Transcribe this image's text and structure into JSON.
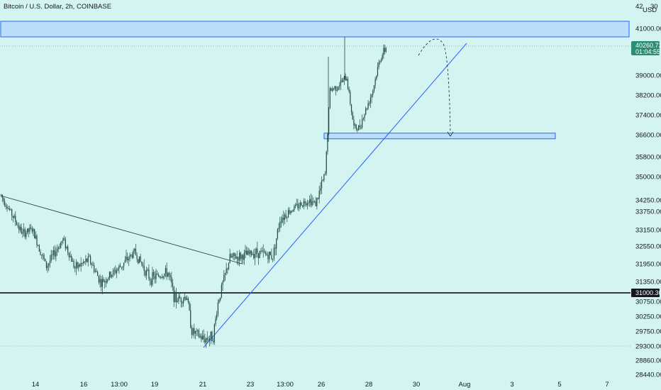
{
  "header": {
    "title": "Bitcoin / U.S. Dollar, 2h, COINBASE"
  },
  "colors": {
    "background": "#d4f4f1",
    "candle": "#1f4a42",
    "trendline": "#2962ff",
    "zone_fill": "#bbdefb",
    "price_tag": "#2c8c72",
    "level_tag": "#131722"
  },
  "chart_data": {
    "type": "candlestick",
    "symbol": "BTCUSD",
    "currency": "USD",
    "timeframe": "2h",
    "ylim": [
      28200,
      42000
    ],
    "x_ticks": [
      "14",
      "16",
      "13:00",
      "19",
      "21",
      "23",
      "13:00",
      "26",
      "28",
      "30",
      "Aug",
      "3",
      "5",
      "7"
    ],
    "y_ticks": [
      "41000.00",
      "39000.00",
      "38200.00",
      "37400.00",
      "36600.00",
      "35800.00",
      "35000.00",
      "34250.00",
      "33750.00",
      "33150.00",
      "32550.00",
      "31950.00",
      "31350.00",
      "30750.00",
      "30250.00",
      "29750.00",
      "29300.00",
      "28860.00",
      "28440.00"
    ],
    "top_axis_label": "42",
    "top_axis_label_2": "30",
    "currency_label": "USD",
    "current_price": {
      "value": "40260.72",
      "countdown": "01:04:55"
    },
    "levels": [
      {
        "name": "support",
        "label": "31000.30",
        "price": 31000.3
      },
      {
        "name": "low",
        "price": 29300
      }
    ],
    "zones": [
      {
        "name": "resistance-zone",
        "from": 40800,
        "to": 41350
      },
      {
        "name": "target-zone",
        "from": 36450,
        "to": 36650
      }
    ],
    "trendlines": [
      {
        "name": "descending-trendline",
        "from": {
          "bar": 0,
          "price": 34650
        },
        "to": {
          "bar": 202,
          "price": 32150
        }
      },
      {
        "name": "ascending-trendline",
        "from": {
          "bar": 171,
          "price": 29280
        },
        "to": {
          "bar": 392,
          "price": 40400
        }
      }
    ],
    "projection": {
      "name": "projected-path",
      "end_price": 36600
    },
    "ohlc_segments": [
      {
        "x": 0,
        "price": 34400
      },
      {
        "x": 7,
        "price": 33800
      },
      {
        "x": 18,
        "price": 33000
      },
      {
        "x": 26,
        "price": 33150
      },
      {
        "x": 38,
        "price": 31850
      },
      {
        "x": 52,
        "price": 32800
      },
      {
        "x": 62,
        "price": 31800
      },
      {
        "x": 74,
        "price": 32100
      },
      {
        "x": 84,
        "price": 31300
      },
      {
        "x": 100,
        "price": 31850
      },
      {
        "x": 112,
        "price": 32350
      },
      {
        "x": 125,
        "price": 31450
      },
      {
        "x": 140,
        "price": 31650
      },
      {
        "x": 146,
        "price": 30800
      },
      {
        "x": 156,
        "price": 30900
      },
      {
        "x": 160,
        "price": 29750
      },
      {
        "x": 170,
        "price": 29500
      },
      {
        "x": 178,
        "price": 29600
      },
      {
        "x": 182,
        "price": 30700
      },
      {
        "x": 192,
        "price": 32150
      },
      {
        "x": 202,
        "price": 32200
      },
      {
        "x": 214,
        "price": 32350
      },
      {
        "x": 228,
        "price": 32200
      },
      {
        "x": 234,
        "price": 33500
      },
      {
        "x": 246,
        "price": 33900
      },
      {
        "x": 258,
        "price": 34250
      },
      {
        "x": 264,
        "price": 34100
      },
      {
        "x": 268,
        "price": 34600
      },
      {
        "x": 272,
        "price": 35100
      },
      {
        "x": 276,
        "price": 38400
      },
      {
        "x": 282,
        "price": 38550
      },
      {
        "x": 290,
        "price": 38900
      },
      {
        "x": 296,
        "price": 36900
      },
      {
        "x": 300,
        "price": 36850
      },
      {
        "x": 306,
        "price": 37600
      },
      {
        "x": 312,
        "price": 38400
      },
      {
        "x": 318,
        "price": 39700
      },
      {
        "x": 324,
        "price": 40260
      }
    ]
  }
}
